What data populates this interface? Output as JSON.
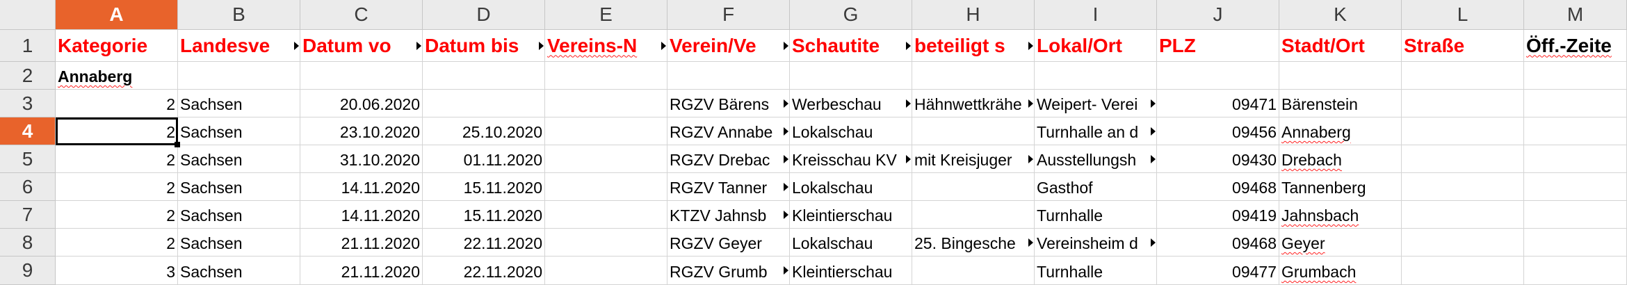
{
  "columns": [
    "A",
    "B",
    "C",
    "D",
    "E",
    "F",
    "G",
    "H",
    "I",
    "J",
    "K",
    "L",
    "M"
  ],
  "active_column": "A",
  "rows": [
    "1",
    "2",
    "3",
    "4",
    "5",
    "6",
    "7",
    "8",
    "9"
  ],
  "active_row": "4",
  "header": [
    "Kategorie",
    "Landesve",
    "Datum vo",
    "Datum bis",
    "Vereins-N",
    "Verein/Ve",
    "Schautite",
    "beteiligt s",
    "Lokal/Ort",
    "PLZ",
    "Stadt/Ort",
    "Straße",
    "Öff.-Zeite"
  ],
  "group_label": "Annaberg",
  "data": [
    [
      "2",
      "Sachsen",
      "20.06.2020",
      "",
      "",
      "RGZV Bärens",
      "Werbeschau",
      "Hähnwettkrähe",
      "Weipert- Verei",
      "09471",
      "Bärenstein",
      "",
      ""
    ],
    [
      "2",
      "Sachsen",
      "23.10.2020",
      "25.10.2020",
      "",
      "RGZV Annabe",
      "Lokalschau",
      "",
      "Turnhalle an d",
      "09456",
      "Annaberg",
      "",
      ""
    ],
    [
      "2",
      "Sachsen",
      "31.10.2020",
      "01.11.2020",
      "",
      "RGZV Drebac",
      "Kreisschau KV",
      "mit Kreisjuger",
      "Ausstellungsh",
      "09430",
      "Drebach",
      "",
      ""
    ],
    [
      "2",
      "Sachsen",
      "14.11.2020",
      "15.11.2020",
      "",
      "RGZV Tanner",
      "Lokalschau",
      "",
      "Gasthof",
      "09468",
      "Tannenberg",
      "",
      ""
    ],
    [
      "2",
      "Sachsen",
      "14.11.2020",
      "15.11.2020",
      "",
      "KTZV Jahnsb",
      "Kleintierschau",
      "",
      "Turnhalle",
      "09419",
      "Jahnsbach",
      "",
      ""
    ],
    [
      "2",
      "Sachsen",
      "21.11.2020",
      "22.11.2020",
      "",
      "RGZV Geyer",
      "Lokalschau",
      "25. Bingesche",
      "Vereinsheim d",
      "09468",
      "Geyer",
      "",
      ""
    ],
    [
      "3",
      "Sachsen",
      "21.11.2020",
      "22.11.2020",
      "",
      "RGZV Grumb",
      "Kleintierschau",
      "",
      "Turnhalle",
      "09477",
      "Grumbach",
      "",
      ""
    ]
  ]
}
